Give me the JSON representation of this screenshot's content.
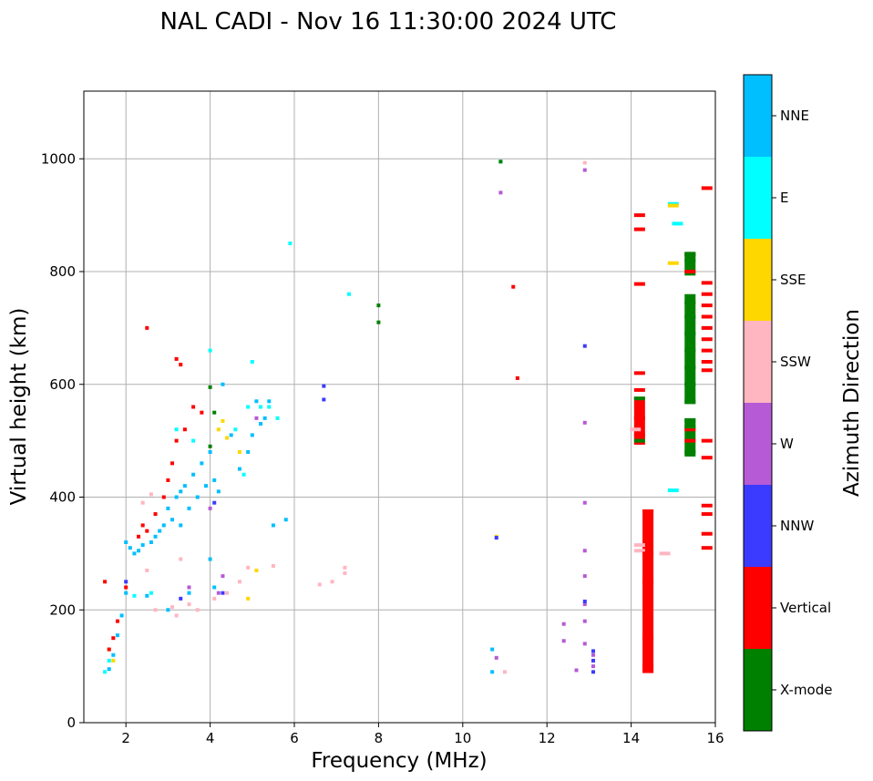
{
  "chart_data": {
    "type": "scatter",
    "title": "NAL CADI - Nov 16 11:30:00 2024 UTC",
    "xlabel": "Frequency (MHz)",
    "ylabel": "Virtual height (km)",
    "xlim": [
      1,
      16
    ],
    "ylim": [
      0,
      1120
    ],
    "xticks": [
      "2",
      "4",
      "6",
      "8",
      "10",
      "12",
      "14",
      "16"
    ],
    "xtick_values": [
      2,
      4,
      6,
      8,
      10,
      12,
      14,
      16
    ],
    "yticks": [
      "0",
      "200",
      "400",
      "600",
      "800",
      "1000"
    ],
    "ytick_values": [
      0,
      200,
      400,
      600,
      800,
      1000
    ],
    "grid": true,
    "colorbar": {
      "label": "Azimuth Direction",
      "categories": [
        {
          "name": "X-mode",
          "color": "#008000"
        },
        {
          "name": "Vertical",
          "color": "#ff0000"
        },
        {
          "name": "NNW",
          "color": "#3b3bff"
        },
        {
          "name": "W",
          "color": "#b65ad6"
        },
        {
          "name": "SSW",
          "color": "#ffb6c1"
        },
        {
          "name": "SSE",
          "color": "#ffd700"
        },
        {
          "name": "E",
          "color": "#00ffff"
        },
        {
          "name": "NNE",
          "color": "#00bfff"
        }
      ]
    },
    "series": [
      {
        "name": "NNE",
        "points": [
          [
            1.6,
            95
          ],
          [
            1.7,
            120
          ],
          [
            1.8,
            155
          ],
          [
            1.9,
            190
          ],
          [
            2.0,
            230
          ],
          [
            2.0,
            320
          ],
          [
            2.1,
            310
          ],
          [
            2.2,
            300
          ],
          [
            2.3,
            305
          ],
          [
            2.4,
            315
          ],
          [
            2.5,
            225
          ],
          [
            2.6,
            320
          ],
          [
            2.7,
            330
          ],
          [
            2.8,
            340
          ],
          [
            2.9,
            350
          ],
          [
            3.0,
            380
          ],
          [
            3.1,
            360
          ],
          [
            3.2,
            400
          ],
          [
            3.3,
            410
          ],
          [
            3.3,
            350
          ],
          [
            3.4,
            420
          ],
          [
            3.5,
            380
          ],
          [
            3.6,
            440
          ],
          [
            3.7,
            400
          ],
          [
            3.8,
            460
          ],
          [
            3.9,
            420
          ],
          [
            4.0,
            480
          ],
          [
            4.1,
            430
          ],
          [
            4.2,
            410
          ],
          [
            4.3,
            600
          ],
          [
            4.5,
            510
          ],
          [
            4.7,
            450
          ],
          [
            4.9,
            480
          ],
          [
            5.0,
            510
          ],
          [
            5.1,
            570
          ],
          [
            5.2,
            530
          ],
          [
            5.3,
            540
          ],
          [
            5.4,
            570
          ],
          [
            5.5,
            350
          ],
          [
            5.8,
            360
          ],
          [
            10.7,
            90
          ],
          [
            10.7,
            130
          ],
          [
            3.0,
            200
          ],
          [
            4.0,
            290
          ],
          [
            4.1,
            240
          ],
          [
            3.5,
            230
          ]
        ]
      },
      {
        "name": "E",
        "points": [
          [
            1.5,
            90
          ],
          [
            1.6,
            110
          ],
          [
            2.2,
            225
          ],
          [
            2.6,
            230
          ],
          [
            3.6,
            500
          ],
          [
            4.0,
            660
          ],
          [
            4.6,
            520
          ],
          [
            4.8,
            440
          ],
          [
            5.0,
            640
          ],
          [
            5.2,
            560
          ],
          [
            5.4,
            560
          ],
          [
            5.6,
            540
          ],
          [
            5.9,
            850
          ],
          [
            7.3,
            760
          ],
          [
            10.9,
            995
          ],
          [
            15.0,
            920
          ],
          [
            15.1,
            885
          ],
          [
            15.0,
            412
          ],
          [
            3.2,
            520
          ],
          [
            4.9,
            560
          ]
        ]
      },
      {
        "name": "SSE",
        "points": [
          [
            1.6,
            130
          ],
          [
            1.7,
            110
          ],
          [
            4.2,
            520
          ],
          [
            4.3,
            535
          ],
          [
            4.4,
            505
          ],
          [
            4.9,
            220
          ],
          [
            4.7,
            480
          ],
          [
            5.1,
            270
          ],
          [
            15.0,
            917
          ],
          [
            15.0,
            815
          ],
          [
            10.8,
            330
          ]
        ]
      },
      {
        "name": "SSW",
        "points": [
          [
            2.4,
            390
          ],
          [
            2.5,
            270
          ],
          [
            2.6,
            405
          ],
          [
            2.7,
            200
          ],
          [
            3.1,
            205
          ],
          [
            3.2,
            190
          ],
          [
            3.3,
            290
          ],
          [
            3.5,
            210
          ],
          [
            3.7,
            200
          ],
          [
            4.1,
            220
          ],
          [
            4.4,
            230
          ],
          [
            4.7,
            250
          ],
          [
            4.9,
            275
          ],
          [
            5.5,
            278
          ],
          [
            6.6,
            245
          ],
          [
            6.9,
            250
          ],
          [
            7.2,
            275
          ],
          [
            7.2,
            265
          ],
          [
            11.0,
            90
          ],
          [
            12.9,
            993
          ],
          [
            14.2,
            315
          ],
          [
            14.2,
            305
          ],
          [
            14.1,
            520
          ],
          [
            14.8,
            300
          ]
        ]
      },
      {
        "name": "W",
        "points": [
          [
            3.5,
            240
          ],
          [
            4.0,
            380
          ],
          [
            4.2,
            230
          ],
          [
            4.3,
            260
          ],
          [
            5.1,
            540
          ],
          [
            10.9,
            940
          ],
          [
            10.8,
            115
          ],
          [
            12.4,
            175
          ],
          [
            12.4,
            145
          ],
          [
            12.7,
            93
          ],
          [
            12.9,
            980
          ],
          [
            12.9,
            532
          ],
          [
            12.9,
            390
          ],
          [
            12.9,
            305
          ],
          [
            12.9,
            260
          ],
          [
            12.9,
            210
          ],
          [
            12.9,
            180
          ],
          [
            12.9,
            140
          ],
          [
            13.1,
            120
          ],
          [
            13.1,
            100
          ]
        ]
      },
      {
        "name": "NNW",
        "points": [
          [
            2.0,
            250
          ],
          [
            3.3,
            220
          ],
          [
            4.1,
            390
          ],
          [
            4.3,
            230
          ],
          [
            6.7,
            597
          ],
          [
            6.7,
            573
          ],
          [
            10.8,
            328
          ],
          [
            12.9,
            668
          ],
          [
            12.9,
            215
          ],
          [
            13.1,
            90
          ],
          [
            13.1,
            110
          ],
          [
            13.1,
            127
          ]
        ]
      },
      {
        "name": "Vertical",
        "points": [
          [
            1.5,
            250
          ],
          [
            1.6,
            130
          ],
          [
            1.7,
            150
          ],
          [
            1.8,
            180
          ],
          [
            2.0,
            240
          ],
          [
            2.3,
            330
          ],
          [
            2.4,
            350
          ],
          [
            2.5,
            340
          ],
          [
            2.5,
            700
          ],
          [
            2.7,
            370
          ],
          [
            2.9,
            400
          ],
          [
            3.0,
            430
          ],
          [
            3.1,
            460
          ],
          [
            3.2,
            500
          ],
          [
            3.2,
            645
          ],
          [
            3.3,
            635
          ],
          [
            3.4,
            520
          ],
          [
            3.6,
            560
          ],
          [
            3.8,
            550
          ],
          [
            11.2,
            773
          ],
          [
            11.3,
            611
          ],
          [
            14.2,
            900
          ],
          [
            14.2,
            875
          ],
          [
            14.2,
            778
          ],
          [
            14.2,
            620
          ],
          [
            14.2,
            590
          ],
          [
            14.2,
            540
          ],
          [
            14.2,
            510
          ],
          [
            14.4,
            375
          ],
          [
            14.4,
            300
          ],
          [
            14.4,
            250
          ],
          [
            14.4,
            150
          ],
          [
            14.4,
            100
          ],
          [
            15.4,
            830
          ],
          [
            15.4,
            800
          ],
          [
            15.4,
            520
          ],
          [
            15.4,
            500
          ],
          [
            15.8,
            948
          ],
          [
            15.8,
            780
          ],
          [
            15.8,
            760
          ],
          [
            15.8,
            740
          ],
          [
            15.8,
            720
          ],
          [
            15.8,
            700
          ],
          [
            15.8,
            680
          ],
          [
            15.8,
            660
          ],
          [
            15.8,
            640
          ],
          [
            15.8,
            625
          ],
          [
            15.8,
            500
          ],
          [
            15.8,
            470
          ],
          [
            15.8,
            385
          ],
          [
            15.8,
            370
          ],
          [
            15.8,
            335
          ],
          [
            15.8,
            310
          ]
        ]
      },
      {
        "name": "X-mode",
        "points": [
          [
            4.0,
            595
          ],
          [
            4.1,
            550
          ],
          [
            4.0,
            490
          ],
          [
            8.0,
            740
          ],
          [
            8.0,
            710
          ],
          [
            10.9,
            995
          ],
          [
            14.2,
            575
          ],
          [
            14.2,
            500
          ],
          [
            15.4,
            830
          ],
          [
            15.4,
            820
          ],
          [
            15.4,
            745
          ],
          [
            15.4,
            720
          ],
          [
            15.4,
            690
          ],
          [
            15.4,
            660
          ],
          [
            15.4,
            630
          ],
          [
            15.4,
            600
          ],
          [
            15.4,
            570
          ],
          [
            15.4,
            535
          ],
          [
            15.4,
            525
          ],
          [
            15.4,
            480
          ]
        ]
      }
    ],
    "bars": [
      {
        "name": "Vertical",
        "x": 14.4,
        "y0": 88,
        "y1": 378
      },
      {
        "name": "Vertical",
        "x": 14.2,
        "y0": 493,
        "y1": 578
      },
      {
        "name": "X-mode",
        "x": 15.4,
        "y0": 565,
        "y1": 760
      },
      {
        "name": "X-mode",
        "x": 15.4,
        "y0": 472,
        "y1": 540
      },
      {
        "name": "X-mode",
        "x": 15.4,
        "y0": 793,
        "y1": 835
      }
    ]
  }
}
